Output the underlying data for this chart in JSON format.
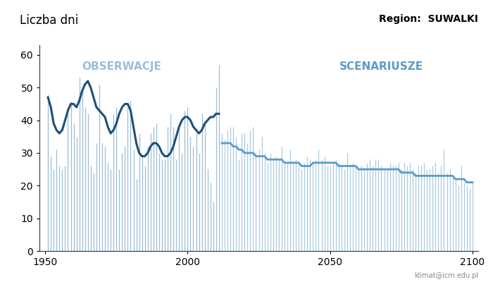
{
  "title_left": "Liczba dni",
  "title_right": "Region:  SUWALKI",
  "label_obs": "OBSERWACJE",
  "label_scen": "SCENARIUSZE",
  "watermark": "klimat@icm.edu.pl",
  "ylim": [
    0,
    63
  ],
  "yticks": [
    0,
    10,
    20,
    30,
    40,
    50,
    60
  ],
  "xlim": [
    1948,
    2102
  ],
  "xticks": [
    1950,
    2000,
    2050,
    2100
  ],
  "obs_color_line": "#1e4f7a",
  "obs_color_bar": "#9dbdd6",
  "scen_color_line": "#5b9bc8",
  "scen_color_bar": "#aacae0",
  "split_year": 2012,
  "obs_years": [
    1951,
    1952,
    1953,
    1954,
    1955,
    1956,
    1957,
    1958,
    1959,
    1960,
    1961,
    1962,
    1963,
    1964,
    1965,
    1966,
    1967,
    1968,
    1969,
    1970,
    1971,
    1972,
    1973,
    1974,
    1975,
    1976,
    1977,
    1978,
    1979,
    1980,
    1981,
    1982,
    1983,
    1984,
    1985,
    1986,
    1987,
    1988,
    1989,
    1990,
    1991,
    1992,
    1993,
    1994,
    1995,
    1996,
    1997,
    1998,
    1999,
    2000,
    2001,
    2002,
    2003,
    2004,
    2005,
    2006,
    2007,
    2008,
    2009,
    2010,
    2011
  ],
  "obs_values": [
    48,
    29,
    25,
    31,
    26,
    25,
    26,
    44,
    46,
    39,
    35,
    53,
    50,
    44,
    42,
    26,
    24,
    33,
    51,
    33,
    32,
    27,
    25,
    42,
    44,
    25,
    30,
    32,
    44,
    46,
    31,
    22,
    36,
    29,
    26,
    32,
    36,
    38,
    39,
    30,
    28,
    28,
    38,
    42,
    38,
    28,
    38,
    30,
    43,
    44,
    35,
    32,
    37,
    30,
    42,
    40,
    25,
    21,
    15,
    50,
    57
  ],
  "obs_smooth": [
    47,
    44,
    39,
    37,
    36,
    37,
    40,
    43,
    45,
    45,
    44,
    46,
    49,
    51,
    52,
    50,
    47,
    44,
    43,
    42,
    41,
    38,
    36,
    37,
    39,
    42,
    44,
    45,
    45,
    43,
    38,
    33,
    30,
    29,
    29,
    30,
    32,
    33,
    33,
    32,
    30,
    29,
    29,
    30,
    32,
    35,
    38,
    40,
    41,
    41,
    40,
    38,
    37,
    36,
    37,
    39,
    40,
    41,
    41,
    42,
    42
  ],
  "scen_years": [
    2012,
    2013,
    2014,
    2015,
    2016,
    2017,
    2018,
    2019,
    2020,
    2021,
    2022,
    2023,
    2024,
    2025,
    2026,
    2027,
    2028,
    2029,
    2030,
    2031,
    2032,
    2033,
    2034,
    2035,
    2036,
    2037,
    2038,
    2039,
    2040,
    2041,
    2042,
    2043,
    2044,
    2045,
    2046,
    2047,
    2048,
    2049,
    2050,
    2051,
    2052,
    2053,
    2054,
    2055,
    2056,
    2057,
    2058,
    2059,
    2060,
    2061,
    2062,
    2063,
    2064,
    2065,
    2066,
    2067,
    2068,
    2069,
    2070,
    2071,
    2072,
    2073,
    2074,
    2075,
    2076,
    2077,
    2078,
    2079,
    2080,
    2081,
    2082,
    2083,
    2084,
    2085,
    2086,
    2087,
    2088,
    2089,
    2090,
    2091,
    2092,
    2093,
    2094,
    2095,
    2096,
    2097,
    2098,
    2099,
    2100
  ],
  "scen_values": [
    36,
    34,
    37,
    38,
    38,
    35,
    28,
    36,
    36,
    33,
    37,
    38,
    30,
    31,
    35,
    30,
    27,
    30,
    28,
    29,
    28,
    32,
    27,
    27,
    31,
    27,
    28,
    27,
    25,
    27,
    29,
    28,
    27,
    28,
    31,
    28,
    29,
    26,
    26,
    27,
    28,
    27,
    26,
    25,
    30,
    26,
    27,
    26,
    25,
    26,
    25,
    27,
    28,
    26,
    28,
    28,
    26,
    25,
    25,
    27,
    26,
    26,
    27,
    25,
    27,
    26,
    27,
    25,
    24,
    26,
    26,
    27,
    25,
    25,
    26,
    27,
    24,
    26,
    31,
    24,
    25,
    23,
    22,
    20,
    26,
    21,
    20,
    19,
    21
  ],
  "scen_smooth": [
    33,
    33,
    33,
    33,
    32,
    32,
    31,
    31,
    30,
    30,
    30,
    30,
    29,
    29,
    29,
    29,
    28,
    28,
    28,
    28,
    28,
    28,
    27,
    27,
    27,
    27,
    27,
    27,
    26,
    26,
    26,
    26,
    27,
    27,
    27,
    27,
    27,
    27,
    27,
    27,
    27,
    26,
    26,
    26,
    26,
    26,
    26,
    26,
    25,
    25,
    25,
    25,
    25,
    25,
    25,
    25,
    25,
    25,
    25,
    25,
    25,
    25,
    25,
    24,
    24,
    24,
    24,
    24,
    23,
    23,
    23,
    23,
    23,
    23,
    23,
    23,
    23,
    23,
    23,
    23,
    23,
    23,
    22,
    22,
    22,
    22,
    21,
    21,
    21
  ]
}
